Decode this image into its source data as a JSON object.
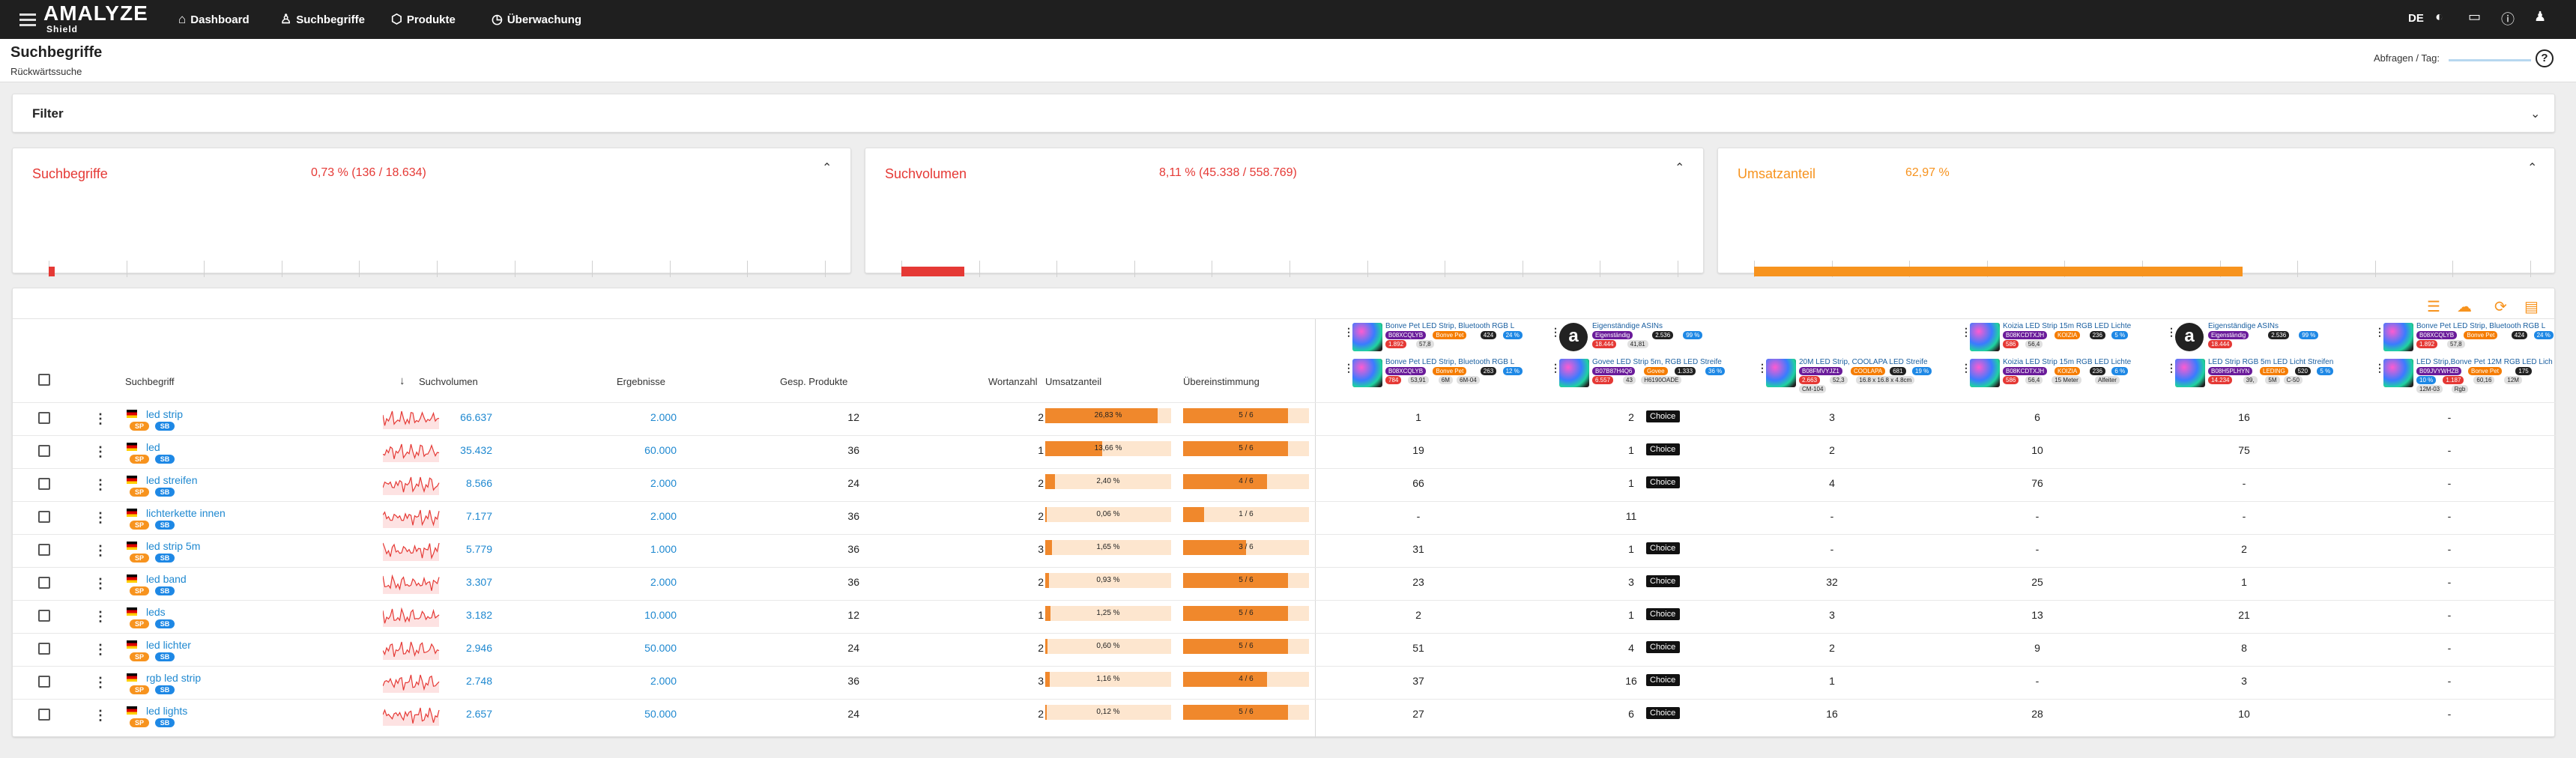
{
  "topbar": {
    "logo_main": "AMALYZE",
    "logo_sub": "Shield",
    "nav": [
      "Dashboard",
      "Suchbegriffe",
      "Produkte",
      "Überwachung"
    ],
    "lang": "DE"
  },
  "header": {
    "title": "Suchbegriffe",
    "subtitle": "Rückwärtssuche",
    "requests_label": "Abfragen / Tag:",
    "help": "?"
  },
  "filter": {
    "label": "Filter"
  },
  "kpis": [
    {
      "title": "Suchbegriffe",
      "value": "0,73 % (136 / 18.634)",
      "percent": 0.73,
      "color": "#e53935"
    },
    {
      "title": "Suchvolumen",
      "value": "8,11 % (45.338 / 558.769)",
      "percent": 8.11,
      "color": "#e53935"
    },
    {
      "title": "Umsatzanteil",
      "value": "62,97 %",
      "percent": 62.97,
      "color": "#f7931e"
    }
  ],
  "axis_ticks": [
    "0 %",
    "10 %",
    "20 %",
    "30 %",
    "40 %",
    "50 %",
    "60 %",
    "70 %",
    "80 %",
    "90 %",
    "100 %"
  ],
  "columns": {
    "keyword": "Suchbegriff",
    "volume": "Suchvolumen",
    "results": "Ergebnisse",
    "total_products": "Gesp. Produkte",
    "word_count": "Wortanzahl",
    "revenue_share": "Umsatzanteil",
    "match": "Übereinstimmung"
  },
  "badges": {
    "sp": "SP",
    "sb": "SB"
  },
  "choice_label": "Choice",
  "products": [
    {
      "title": "Bonve Pet LED Strip, Bluetooth RGB L",
      "chips": [
        "B08XCQLYB",
        "Bonve Pet",
        "424",
        "24 %",
        "1.892",
        "57,8"
      ],
      "row": 1
    },
    {
      "title": "Eigenständige ASINs",
      "chips": [
        "Eigenständig",
        "2.536",
        "99 %",
        "18.444",
        "41,81"
      ],
      "row": 1,
      "amazon": true
    },
    {
      "title": "Koizia LED Strip 15m RGB LED Lichte",
      "chips": [
        "B08KCDTXJH",
        "KOIZIA",
        "236",
        "5 %",
        "586",
        "56,4"
      ],
      "row": 1
    },
    {
      "title": "Eigenständige ASINs",
      "chips": [
        "Eigenständig",
        "2.536",
        "99 %",
        "18.444"
      ],
      "row": 1,
      "amazon": true
    },
    {
      "title": "Bonve Pet LED Strip, Bluetooth RGB L",
      "chips": [
        "B08XCQLYB",
        "Bonve Pet",
        "424",
        "24 %",
        "1.892",
        "57,8"
      ],
      "row": 1
    },
    {
      "title": "Bonve Pet LED Strip, Bluetooth RGB L",
      "chips": [
        "B08XCQLYB",
        "Bonve Pet",
        "263",
        "12 %",
        "784",
        "53,91",
        "6M",
        "6M-04"
      ],
      "row": 2
    },
    {
      "title": "Govee LED Strip 5m, RGB LED Streife",
      "chips": [
        "B07B87H4Q6",
        "Govee",
        "1.333",
        "36 %",
        "6.557",
        "43",
        "H6190OADE"
      ],
      "row": 2
    },
    {
      "title": "20M LED Strip, COOLAPA LED Streife",
      "chips": [
        "B08FMVYJZ1",
        "COOLAPA",
        "681",
        "19 %",
        "2.663",
        "52,3",
        "16.8 x 16.8 x 4.8cm",
        "CM-104"
      ],
      "row": 2
    },
    {
      "title": "Koizia LED Strip 15m RGB LED Lichte",
      "chips": [
        "B08KCDTXJH",
        "KOIZIA",
        "236",
        "6 %",
        "586",
        "56,4",
        "15 Meter",
        "Alfeiter"
      ],
      "row": 2
    },
    {
      "title": "LED Strip RGB 5m LED Licht Streifen",
      "chips": [
        "B08H5PLHYN",
        "LEDING",
        "520",
        "5 %",
        "14.234",
        "39,",
        "5M",
        "C-50"
      ],
      "row": 2
    },
    {
      "title": "LED Strip,Bonve Pet 12M RGB LED Lich",
      "chips": [
        "B09JVYWHZB",
        "Bonve Pet",
        "175",
        "10 %",
        "1.187",
        "60,16",
        "12M",
        "12M-03",
        "Rgb"
      ],
      "row": 2
    }
  ],
  "rows": [
    {
      "keyword": "led strip",
      "volume": "66.637",
      "results": "2.000",
      "products": "12",
      "words": "2",
      "share": "26,83 %",
      "share_val": 26.83,
      "match": "5 / 6",
      "match_val": 0.833,
      "ranks": [
        "1",
        "2",
        "3",
        "6",
        "16",
        "-"
      ],
      "choice": true
    },
    {
      "keyword": "led",
      "volume": "35.432",
      "results": "60.000",
      "products": "36",
      "words": "1",
      "share": "13,66 %",
      "share_val": 13.66,
      "match": "5 / 6",
      "match_val": 0.833,
      "ranks": [
        "19",
        "1",
        "2",
        "10",
        "75",
        "-"
      ],
      "choice": true
    },
    {
      "keyword": "led streifen",
      "volume": "8.566",
      "results": "2.000",
      "products": "24",
      "words": "2",
      "share": "2,40 %",
      "share_val": 2.4,
      "match": "4 / 6",
      "match_val": 0.667,
      "ranks": [
        "66",
        "1",
        "4",
        "76",
        "-",
        "-"
      ],
      "choice": true
    },
    {
      "keyword": "lichterkette innen",
      "volume": "7.177",
      "results": "2.000",
      "products": "36",
      "words": "2",
      "share": "0,06 %",
      "share_val": 0.06,
      "match": "1 / 6",
      "match_val": 0.167,
      "ranks": [
        "-",
        "11",
        "-",
        "-",
        "-",
        "-"
      ],
      "choice": false
    },
    {
      "keyword": "led strip 5m",
      "volume": "5.779",
      "results": "1.000",
      "products": "36",
      "words": "3",
      "share": "1,65 %",
      "share_val": 1.65,
      "match": "3 / 6",
      "match_val": 0.5,
      "ranks": [
        "31",
        "1",
        "-",
        "-",
        "2",
        "-"
      ],
      "choice": true
    },
    {
      "keyword": "led band",
      "volume": "3.307",
      "results": "2.000",
      "products": "36",
      "words": "2",
      "share": "0,93 %",
      "share_val": 0.93,
      "match": "5 / 6",
      "match_val": 0.833,
      "ranks": [
        "23",
        "3",
        "32",
        "25",
        "1",
        "-"
      ],
      "choice": true
    },
    {
      "keyword": "leds",
      "volume": "3.182",
      "results": "10.000",
      "products": "12",
      "words": "1",
      "share": "1,25 %",
      "share_val": 1.25,
      "match": "5 / 6",
      "match_val": 0.833,
      "ranks": [
        "2",
        "1",
        "3",
        "13",
        "21",
        "-"
      ],
      "choice": true
    },
    {
      "keyword": "led lichter",
      "volume": "2.946",
      "results": "50.000",
      "products": "24",
      "words": "2",
      "share": "0,60 %",
      "share_val": 0.6,
      "match": "5 / 6",
      "match_val": 0.833,
      "ranks": [
        "51",
        "4",
        "2",
        "9",
        "8",
        "-"
      ],
      "choice": true
    },
    {
      "keyword": "rgb led strip",
      "volume": "2.748",
      "results": "2.000",
      "products": "36",
      "words": "3",
      "share": "1,16 %",
      "share_val": 1.16,
      "match": "4 / 6",
      "match_val": 0.667,
      "ranks": [
        "37",
        "16",
        "1",
        "-",
        "3",
        "-"
      ],
      "choice": true
    },
    {
      "keyword": "led lights",
      "volume": "2.657",
      "results": "50.000",
      "products": "24",
      "words": "2",
      "share": "0,12 %",
      "share_val": 0.12,
      "match": "5 / 6",
      "match_val": 0.833,
      "ranks": [
        "27",
        "6",
        "16",
        "28",
        "10",
        "-"
      ],
      "choice": true
    }
  ]
}
